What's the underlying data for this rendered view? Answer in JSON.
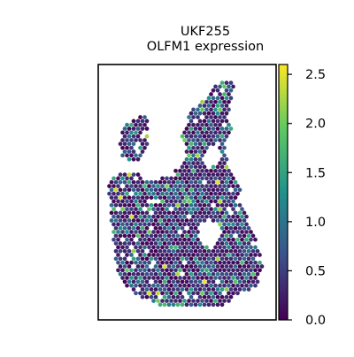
{
  "chart_data": {
    "type": "scatter",
    "title_line1": "UKF255",
    "title_line2": "OLFM1 expression",
    "colorbar": {
      "label": "",
      "min": 0.0,
      "max": 2.6,
      "ticks": [
        0.0,
        0.5,
        1.0,
        1.5,
        2.0,
        2.5
      ],
      "tick_labels": [
        "0.0",
        "0.5",
        "1.0",
        "1.5",
        "2.0",
        "2.5"
      ],
      "colormap": "viridis",
      "colors": [
        "#440154",
        "#3b528b",
        "#21918c",
        "#5ec962",
        "#fde725"
      ]
    },
    "axes": {
      "xlabel": "",
      "ylabel": "",
      "xticks": [],
      "yticks": [],
      "frame": true,
      "grid": false
    },
    "marker": "hexagon",
    "spot_count_approx": 1800,
    "value_distribution_note": "mostly 0.0–0.5 with scattered spots up to ~2.6"
  }
}
